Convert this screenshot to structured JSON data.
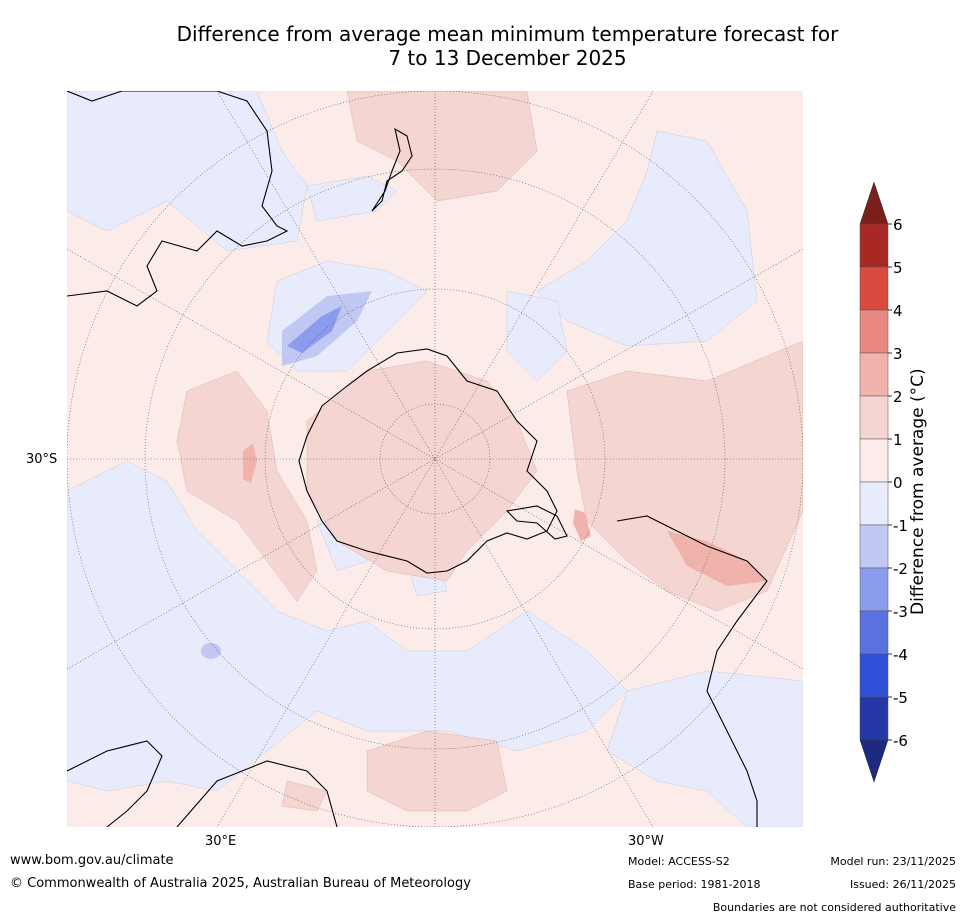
{
  "title": {
    "line1": "Difference from average mean minimum temperature forecast for",
    "line2": "7 to 13 December 2025"
  },
  "map": {
    "projection": "South polar stereographic",
    "lat_label": "30°S",
    "lon_labels": [
      "30°E",
      "30°W"
    ]
  },
  "colorbar": {
    "title": "Difference from average (°C)",
    "tick_labels": [
      "6",
      "5",
      "4",
      "3",
      "2",
      "1",
      "0",
      "-1",
      "-2",
      "-3",
      "-4",
      "-5",
      "-6"
    ],
    "levels": [
      {
        "range": "5 to 6",
        "color": "#a82823"
      },
      {
        "range": "4 to 5",
        "color": "#d94a3f"
      },
      {
        "range": "3 to 4",
        "color": "#e88880"
      },
      {
        "range": "2 to 3",
        "color": "#efb3ab"
      },
      {
        "range": "1 to 2",
        "color": "#f5d5d1"
      },
      {
        "range": "0 to 1",
        "color": "#fbecea"
      },
      {
        "range": "-1 to 0",
        "color": "#e8ebfb"
      },
      {
        "range": "-2 to -1",
        "color": "#c0c8f3"
      },
      {
        "range": "-3 to -2",
        "color": "#8a9ceb"
      },
      {
        "range": "-4 to -3",
        "color": "#5a72e0"
      },
      {
        "range": "-5 to -4",
        "color": "#3050d8"
      },
      {
        "range": "-6 to -5",
        "color": "#2438a8"
      }
    ],
    "over_color": "#7a1f1a",
    "under_color": "#1e2a80"
  },
  "footer": {
    "website": "www.bom.gov.au/climate",
    "copyright": "© Commonwealth of Australia 2025, Australian Bureau of Meteorology",
    "model": "Model: ACCESS-S2",
    "base_period": "Base period: 1981-2018",
    "model_run": "Model run: 23/11/2025",
    "issued": "Issued: 26/11/2025",
    "disclaimer": "Boundaries are not considered authoritative"
  }
}
